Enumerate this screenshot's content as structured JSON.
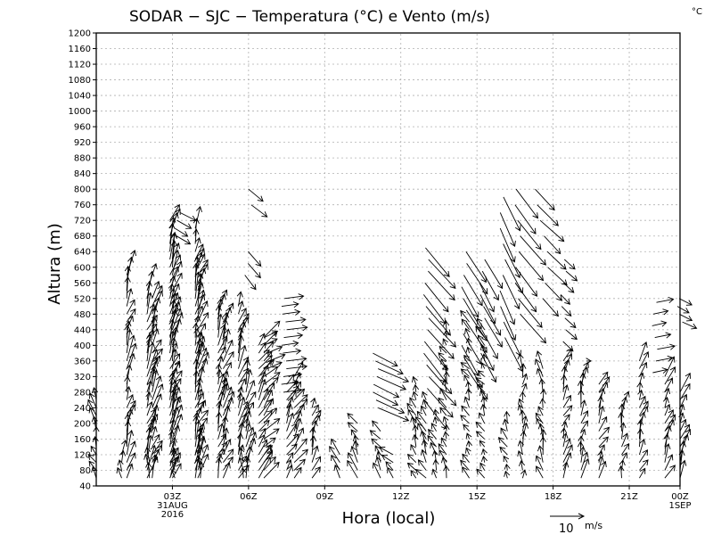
{
  "chart_data": {
    "type": "wind-barb time-height section (SODAR)",
    "title": "SODAR − SJC − Temperatura (°C) e Vento (m/s)",
    "corner_unit": "°C",
    "xlabel": "Hora (local)",
    "ylabel": "Altura (m)",
    "ylim": [
      40,
      1200
    ],
    "yticks": [
      40,
      80,
      120,
      160,
      200,
      240,
      280,
      320,
      360,
      400,
      440,
      480,
      520,
      560,
      600,
      640,
      680,
      720,
      760,
      800,
      840,
      880,
      920,
      960,
      1000,
      1040,
      1080,
      1120,
      1160,
      1200
    ],
    "xlim_hours": [
      0,
      23
    ],
    "xticks": [
      {
        "hour": 3,
        "label": "03Z",
        "sublabels": [
          "31AUG",
          "2016"
        ]
      },
      {
        "hour": 6,
        "label": "06Z",
        "sublabels": []
      },
      {
        "hour": 9,
        "label": "09Z",
        "sublabels": []
      },
      {
        "hour": 12,
        "label": "12Z",
        "sublabels": []
      },
      {
        "hour": 15,
        "label": "15Z",
        "sublabels": []
      },
      {
        "hour": 18,
        "label": "18Z",
        "sublabels": []
      },
      {
        "hour": 21,
        "label": "21Z",
        "sublabels": []
      },
      {
        "hour": 23,
        "label": "00Z",
        "sublabels": [
          "1SEP"
        ]
      }
    ],
    "reference_vector": {
      "speed": 10,
      "label": "10",
      "unit": "m/s"
    },
    "grid": true,
    "profiles": [
      {
        "hour": 0.0,
        "top": 260,
        "u": -0.5,
        "v": 2.0
      },
      {
        "hour": 1.0,
        "top": 120,
        "u": 0.0,
        "v": 2.5
      },
      {
        "hour": 1.2,
        "top": 580,
        "u": 0.6,
        "v": 3.2
      },
      {
        "hour": 2.0,
        "top": 540,
        "u": 0.8,
        "v": 3.4
      },
      {
        "hour": 2.1,
        "top": 100,
        "u": 0.0,
        "v": 2.0
      },
      {
        "hour": 2.2,
        "top": 520,
        "u": 0.8,
        "v": 3.0
      },
      {
        "hour": 2.9,
        "top": 720,
        "u": 0.8,
        "v": 3.5
      },
      {
        "hour": 3.0,
        "top": 620,
        "u": 0.7,
        "v": 3.3
      },
      {
        "hour": 3.1,
        "top": 100,
        "u": 0.0,
        "v": 2.0
      },
      {
        "hour": 3.9,
        "top": 700,
        "u": 0.6,
        "v": 3.4
      },
      {
        "hour": 4.0,
        "top": 600,
        "u": 0.8,
        "v": 3.2
      },
      {
        "hour": 4.1,
        "top": 120,
        "u": 0.0,
        "v": 2.0
      },
      {
        "hour": 4.8,
        "top": 500,
        "u": 0.6,
        "v": 3.0
      },
      {
        "hour": 5.0,
        "top": 460,
        "u": 0.8,
        "v": 3.2
      },
      {
        "hour": 5.6,
        "top": 500,
        "u": 0.8,
        "v": 3.2
      },
      {
        "hour": 5.8,
        "top": 100,
        "u": 0.0,
        "v": 2.0
      },
      {
        "hour": 5.9,
        "top": 300,
        "u": 0.7,
        "v": 3.0
      },
      {
        "hour": 6.4,
        "top": 400,
        "u": 1.2,
        "v": 2.6
      },
      {
        "hour": 6.6,
        "top": 420,
        "u": 1.5,
        "v": 2.2
      },
      {
        "hour": 7.5,
        "top": 300,
        "u": 1.0,
        "v": 2.4
      },
      {
        "hour": 7.8,
        "top": 320,
        "u": 1.2,
        "v": 2.6
      },
      {
        "hour": 8.5,
        "top": 240,
        "u": 0.6,
        "v": 2.4
      },
      {
        "hour": 9.6,
        "top": 120,
        "u": -0.8,
        "v": 2.0
      },
      {
        "hour": 10.3,
        "top": 200,
        "u": -0.8,
        "v": 2.2
      },
      {
        "hour": 11.2,
        "top": 180,
        "u": -0.8,
        "v": 2.0
      },
      {
        "hour": 11.7,
        "top": 120,
        "u": -1.2,
        "v": 1.8
      },
      {
        "hour": 12.6,
        "top": 300,
        "u": -0.6,
        "v": 1.8
      },
      {
        "hour": 13.0,
        "top": 260,
        "u": -0.8,
        "v": 2.0
      },
      {
        "hour": 13.4,
        "top": 220,
        "u": -0.6,
        "v": 1.5
      },
      {
        "hour": 13.8,
        "top": 440,
        "u": -0.5,
        "v": 1.6
      },
      {
        "hour": 14.7,
        "top": 460,
        "u": -0.6,
        "v": 1.4
      },
      {
        "hour": 15.3,
        "top": 440,
        "u": -0.6,
        "v": 1.4
      },
      {
        "hour": 16.2,
        "top": 200,
        "u": -0.6,
        "v": 1.5
      },
      {
        "hour": 16.8,
        "top": 340,
        "u": 0.0,
        "v": 2.0
      },
      {
        "hour": 17.6,
        "top": 340,
        "u": -0.4,
        "v": 2.2
      },
      {
        "hour": 18.4,
        "top": 360,
        "u": 0.6,
        "v": 2.2
      },
      {
        "hour": 19.1,
        "top": 320,
        "u": 0.4,
        "v": 2.4
      },
      {
        "hour": 19.8,
        "top": 300,
        "u": 0.8,
        "v": 2.4
      },
      {
        "hour": 20.7,
        "top": 240,
        "u": 0.4,
        "v": 2.4
      },
      {
        "hour": 21.4,
        "top": 360,
        "u": 0.6,
        "v": 2.4
      },
      {
        "hour": 22.4,
        "top": 320,
        "u": 0.8,
        "v": 2.6
      },
      {
        "hour": 23.0,
        "top": 280,
        "u": 0.8,
        "v": 2.6
      }
    ],
    "upper_features": [
      {
        "hour": 6.0,
        "heights": [
          800,
          760
        ],
        "u": 2.0,
        "v": -1.5
      },
      {
        "hour": 5.9,
        "heights": [
          640,
          610,
          580
        ],
        "u": 1.6,
        "v": -1.8
      },
      {
        "hour": 3.2,
        "heights": [
          740,
          720,
          700,
          680
        ],
        "u": 2.0,
        "v": -1.0
      },
      {
        "hour": 7.4,
        "heights": [
          520,
          500,
          480,
          460,
          440,
          420,
          400,
          380,
          360,
          340,
          320,
          300,
          280
        ],
        "u": 2.6,
        "v": 0.3
      },
      {
        "hour": 6.7,
        "heights": [
          420,
          400,
          380,
          360,
          340
        ],
        "u": 2.0,
        "v": 0.8
      },
      {
        "hour": 11.0,
        "heights": [
          380,
          360,
          340,
          320,
          300,
          280,
          260,
          240
        ],
        "u": 3.8,
        "v": -1.6
      },
      {
        "hour": 13.0,
        "heights": [
          650,
          620,
          590,
          560,
          530,
          500,
          470,
          440,
          410,
          380,
          350,
          320,
          290,
          260
        ],
        "u": 3.4,
        "v": -3.6
      },
      {
        "hour": 14.5,
        "heights": [
          640,
          610,
          580,
          550,
          520,
          490,
          460,
          430,
          400,
          370,
          340
        ],
        "u": 2.6,
        "v": -3.8
      },
      {
        "hour": 15.2,
        "heights": [
          620,
          590,
          560,
          530,
          500,
          470,
          440,
          410,
          380
        ],
        "u": 2.2,
        "v": -3.6
      },
      {
        "hour": 16.0,
        "heights": [
          780,
          740,
          700,
          660,
          620,
          580,
          540,
          500,
          460,
          420
        ],
        "u": 2.2,
        "v": -4.2
      },
      {
        "hour": 16.6,
        "heights": [
          800,
          760,
          720,
          680,
          640,
          600,
          560,
          520,
          480
        ],
        "u": 3.2,
        "v": -3.6
      },
      {
        "hour": 17.4,
        "heights": [
          800,
          760,
          720
        ],
        "u": 3.0,
        "v": -2.6
      },
      {
        "hour": 17.7,
        "heights": [
          680,
          640,
          600,
          560,
          520
        ],
        "u": 2.4,
        "v": -2.2
      },
      {
        "hour": 18.4,
        "heights": [
          620,
          590,
          560,
          530,
          500,
          470,
          440,
          410
        ],
        "u": 1.4,
        "v": -1.2
      },
      {
        "hour": 19.2,
        "heights": [
          360
        ],
        "u": 0.6,
        "v": 0.0
      },
      {
        "hour": 22.0,
        "heights": [
          510,
          480,
          450,
          420,
          390,
          360,
          330
        ],
        "u": 2.2,
        "v": 0.4
      },
      {
        "hour": 23.0,
        "heights": [
          520,
          500,
          480,
          460
        ],
        "u": 1.8,
        "v": -0.8
      }
    ]
  }
}
